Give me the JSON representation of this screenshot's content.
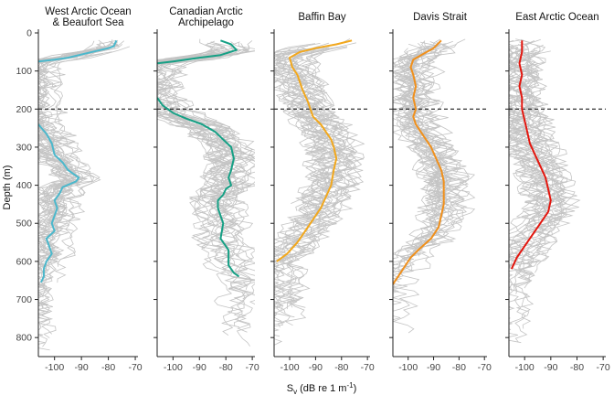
{
  "chart_data": {
    "type": "line",
    "ylabel": "Depth (m)",
    "xlabel_main": "S",
    "xlabel_sub": "v",
    "xlabel_rest": " (dB re 1 m",
    "xlabel_sup": "-1",
    "xlabel_end": ")",
    "xlim": [
      -106,
      -69
    ],
    "ylim": [
      0,
      850
    ],
    "x_ticks": [
      "-100",
      "-90",
      "-80",
      "-70"
    ],
    "x_tick_values": [
      -100,
      -90,
      -80,
      -70
    ],
    "y_ticks": [
      "0",
      "100",
      "200",
      "300",
      "400",
      "500",
      "600",
      "700",
      "800"
    ],
    "y_tick_values": [
      0,
      100,
      200,
      300,
      400,
      500,
      600,
      700,
      800
    ],
    "reference_depth": 200,
    "panels": [
      {
        "title_lines": [
          "West Arctic Ocean",
          "& Beaufort Sea"
        ],
        "color": "#4bb8cc",
        "segments": [
          [
            [
              -77,
              20
            ],
            [
              -78,
              35
            ],
            [
              -80,
              40
            ],
            [
              -86,
              50
            ],
            [
              -95,
              65
            ],
            [
              -100,
              70
            ],
            [
              -106,
              75
            ]
          ],
          [
            [
              -106,
              240
            ],
            [
              -103,
              265
            ],
            [
              -101,
              290
            ],
            [
              -100,
              320
            ],
            [
              -97,
              340
            ],
            [
              -95,
              360
            ],
            [
              -91,
              380
            ],
            [
              -92,
              390
            ],
            [
              -97,
              405
            ],
            [
              -98,
              420
            ],
            [
              -100,
              440
            ],
            [
              -99,
              460
            ],
            [
              -100,
              480
            ],
            [
              -101,
              500
            ],
            [
              -100,
              520
            ],
            [
              -103,
              540
            ],
            [
              -102,
              560
            ],
            [
              -101,
              580
            ],
            [
              -103,
              600
            ],
            [
              -104,
              620
            ],
            [
              -104,
              640
            ],
            [
              -105,
              655
            ]
          ]
        ]
      },
      {
        "title_lines": [
          "Canadian Arctic",
          "Archipelago"
        ],
        "color": "#16a085",
        "segments": [
          [
            [
              -106,
              80
            ],
            [
              -100,
              75
            ],
            [
              -90,
              65
            ],
            [
              -82,
              58
            ],
            [
              -76,
              45
            ],
            [
              -78,
              30
            ],
            [
              -82,
              20
            ]
          ],
          [
            [
              -106,
              170
            ],
            [
              -104,
              190
            ],
            [
              -100,
              210
            ],
            [
              -95,
              225
            ],
            [
              -89,
              240
            ],
            [
              -84,
              260
            ],
            [
              -81,
              280
            ],
            [
              -78,
              300
            ],
            [
              -77,
              330
            ],
            [
              -78,
              360
            ],
            [
              -79,
              380
            ],
            [
              -78,
              400
            ],
            [
              -80,
              410
            ],
            [
              -81,
              425
            ],
            [
              -83,
              440
            ],
            [
              -83,
              460
            ],
            [
              -82,
              480
            ],
            [
              -81,
              500
            ],
            [
              -82,
              540
            ],
            [
              -79,
              570
            ],
            [
              -79,
              610
            ],
            [
              -77,
              630
            ],
            [
              -75,
              640
            ]
          ]
        ]
      },
      {
        "title_lines": [
          "Baffin Bay"
        ],
        "color": "#f2a81d",
        "segments": [
          [
            [
              -76,
              20
            ],
            [
              -82,
              30
            ],
            [
              -90,
              40
            ],
            [
              -96,
              50
            ],
            [
              -100,
              65
            ],
            [
              -99,
              90
            ],
            [
              -97,
              110
            ],
            [
              -95,
              150
            ],
            [
              -93,
              180
            ],
            [
              -92,
              200
            ],
            [
              -91,
              220
            ],
            [
              -88,
              240
            ],
            [
              -86,
              260
            ],
            [
              -84,
              280
            ],
            [
              -83,
              300
            ],
            [
              -82,
              330
            ],
            [
              -83,
              360
            ],
            [
              -84,
              400
            ],
            [
              -86,
              430
            ],
            [
              -88,
              460
            ],
            [
              -91,
              490
            ],
            [
              -94,
              520
            ],
            [
              -97,
              550
            ],
            [
              -101,
              580
            ],
            [
              -105,
              600
            ]
          ]
        ]
      },
      {
        "title_lines": [
          "Davis Strait"
        ],
        "color": "#f0901c",
        "segments": [
          [
            [
              -87,
              20
            ],
            [
              -90,
              40
            ],
            [
              -94,
              55
            ],
            [
              -98,
              70
            ],
            [
              -99,
              90
            ],
            [
              -98,
              110
            ],
            [
              -97,
              140
            ],
            [
              -98,
              170
            ],
            [
              -97,
              200
            ],
            [
              -98,
              220
            ],
            [
              -97,
              240
            ],
            [
              -95,
              260
            ],
            [
              -93,
              280
            ],
            [
              -91,
              300
            ],
            [
              -89,
              330
            ],
            [
              -87,
              360
            ],
            [
              -86,
              390
            ],
            [
              -86,
              420
            ],
            [
              -86,
              450
            ],
            [
              -87,
              480
            ],
            [
              -88,
              510
            ],
            [
              -91,
              540
            ],
            [
              -96,
              570
            ],
            [
              -99,
              590
            ],
            [
              -101,
              610
            ],
            [
              -103,
              630
            ],
            [
              -106,
              660
            ]
          ]
        ]
      },
      {
        "title_lines": [
          "East Arctic Ocean"
        ],
        "color": "#e3160e",
        "segments": [
          [
            [
              -101,
              20
            ],
            [
              -101,
              50
            ],
            [
              -102,
              80
            ],
            [
              -101,
              110
            ],
            [
              -102,
              140
            ],
            [
              -101,
              170
            ],
            [
              -101,
              200
            ],
            [
              -100,
              230
            ],
            [
              -99,
              260
            ],
            [
              -98,
              290
            ],
            [
              -96,
              320
            ],
            [
              -94,
              350
            ],
            [
              -92,
              380
            ],
            [
              -91,
              410
            ],
            [
              -90,
              440
            ],
            [
              -91,
              470
            ],
            [
              -94,
              500
            ],
            [
              -97,
              530
            ],
            [
              -100,
              560
            ],
            [
              -103,
              590
            ],
            [
              -105,
              620
            ]
          ]
        ]
      }
    ]
  }
}
